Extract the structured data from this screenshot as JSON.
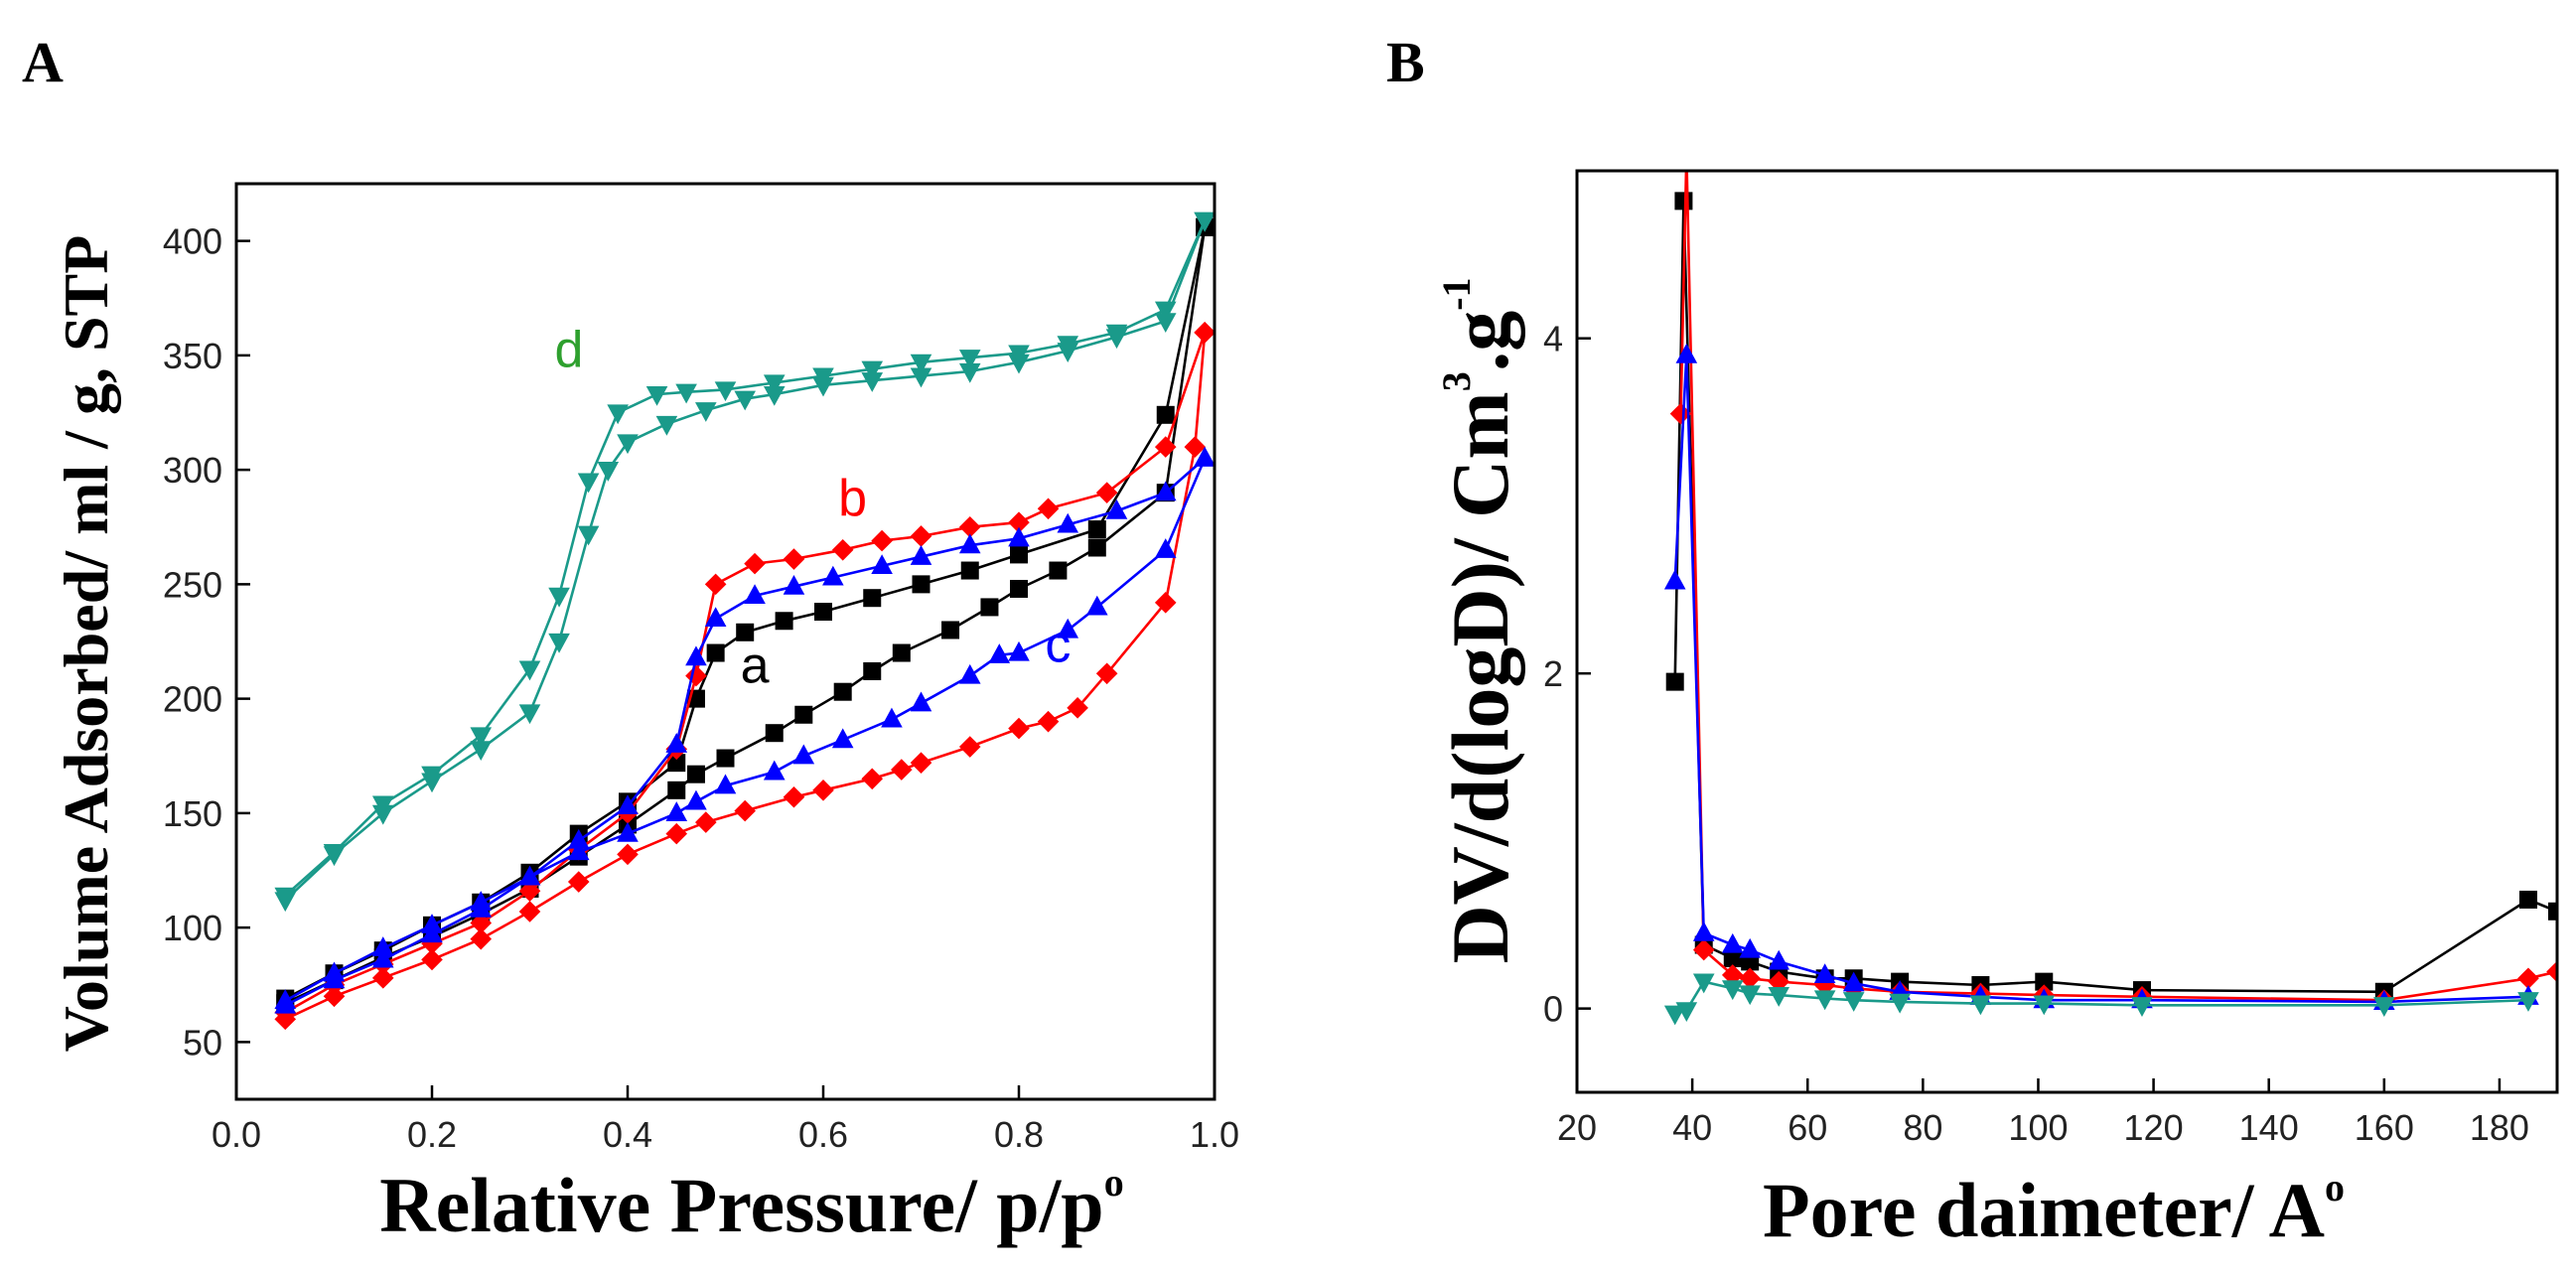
{
  "chart_data": [
    {
      "panel": "A",
      "type": "line",
      "xlabel_main": "Relative Pressure/ p/p",
      "xlabel_sup": "o",
      "ylabel": "Volume Adsorbed/ ml / g, STP",
      "xlim": [
        0.0,
        1.0
      ],
      "ylim": [
        25,
        425
      ],
      "xticks": [
        0.0,
        0.2,
        0.4,
        0.6,
        0.8,
        1.0
      ],
      "xtick_labels": [
        "0.0",
        "0.2",
        "0.4",
        "0.6",
        "0.8",
        "1.0"
      ],
      "yticks": [
        50,
        100,
        150,
        200,
        250,
        300,
        350,
        400
      ],
      "ytick_labels": [
        "50",
        "100",
        "150",
        "200",
        "250",
        "300",
        "350",
        "400"
      ],
      "series": [
        {
          "name": "a",
          "color": "#000000",
          "marker": "square",
          "label": "a",
          "label_at": [
            0.53,
            207
          ],
          "adsorption": [
            [
              0.05,
              67
            ],
            [
              0.1,
              77
            ],
            [
              0.15,
              87
            ],
            [
              0.2,
              96
            ],
            [
              0.25,
              106
            ],
            [
              0.3,
              117
            ],
            [
              0.35,
              131
            ],
            [
              0.4,
              145
            ],
            [
              0.45,
              160
            ],
            [
              0.47,
              167
            ],
            [
              0.5,
              174
            ],
            [
              0.55,
              185
            ],
            [
              0.58,
              193
            ],
            [
              0.62,
              203
            ],
            [
              0.65,
              212
            ],
            [
              0.68,
              220
            ],
            [
              0.73,
              230
            ],
            [
              0.77,
              240
            ],
            [
              0.8,
              248
            ],
            [
              0.84,
              256
            ],
            [
              0.88,
              266
            ],
            [
              0.95,
              290
            ],
            [
              0.99,
              406
            ]
          ],
          "desorption": [
            [
              0.99,
              406
            ],
            [
              0.95,
              324
            ],
            [
              0.88,
              274
            ],
            [
              0.8,
              263
            ],
            [
              0.75,
              256
            ],
            [
              0.7,
              250
            ],
            [
              0.65,
              244
            ],
            [
              0.6,
              238
            ],
            [
              0.56,
              234
            ],
            [
              0.52,
              229
            ],
            [
              0.49,
              220
            ],
            [
              0.47,
              200
            ],
            [
              0.45,
              172
            ],
            [
              0.4,
              155
            ],
            [
              0.35,
              141
            ],
            [
              0.3,
              124
            ],
            [
              0.25,
              111
            ],
            [
              0.2,
              101
            ],
            [
              0.15,
              90
            ],
            [
              0.1,
              80
            ],
            [
              0.05,
              69
            ]
          ]
        },
        {
          "name": "b",
          "color": "#ff0000",
          "marker": "diamond",
          "label": "b",
          "label_at": [
            0.63,
            280
          ],
          "adsorption": [
            [
              0.05,
              60
            ],
            [
              0.1,
              70
            ],
            [
              0.15,
              78
            ],
            [
              0.2,
              86
            ],
            [
              0.25,
              95
            ],
            [
              0.3,
              107
            ],
            [
              0.35,
              120
            ],
            [
              0.4,
              132
            ],
            [
              0.45,
              141
            ],
            [
              0.48,
              146
            ],
            [
              0.52,
              151
            ],
            [
              0.57,
              157
            ],
            [
              0.6,
              160
            ],
            [
              0.65,
              165
            ],
            [
              0.68,
              169
            ],
            [
              0.7,
              172
            ],
            [
              0.75,
              179
            ],
            [
              0.8,
              187
            ],
            [
              0.83,
              190
            ],
            [
              0.86,
              196
            ],
            [
              0.89,
              211
            ],
            [
              0.95,
              242
            ],
            [
              0.98,
              310
            ],
            [
              0.99,
              360
            ]
          ],
          "desorption": [
            [
              0.99,
              360
            ],
            [
              0.95,
              310
            ],
            [
              0.89,
              290
            ],
            [
              0.83,
              283
            ],
            [
              0.8,
              277
            ],
            [
              0.75,
              275
            ],
            [
              0.7,
              271
            ],
            [
              0.66,
              269
            ],
            [
              0.62,
              265
            ],
            [
              0.57,
              261
            ],
            [
              0.53,
              259
            ],
            [
              0.49,
              250
            ],
            [
              0.47,
              210
            ],
            [
              0.45,
              178
            ],
            [
              0.4,
              150
            ],
            [
              0.35,
              134
            ],
            [
              0.3,
              116
            ],
            [
              0.25,
              102
            ],
            [
              0.2,
              93
            ],
            [
              0.15,
              84
            ],
            [
              0.1,
              75
            ],
            [
              0.05,
              63
            ]
          ]
        },
        {
          "name": "c",
          "color": "#0000ff",
          "marker": "triangle-up",
          "label": "c",
          "label_at": [
            0.84,
            216
          ],
          "adsorption": [
            [
              0.05,
              68
            ],
            [
              0.1,
              80
            ],
            [
              0.15,
              91
            ],
            [
              0.2,
              101
            ],
            [
              0.25,
              111
            ],
            [
              0.3,
              122
            ],
            [
              0.35,
              133
            ],
            [
              0.4,
              141
            ],
            [
              0.45,
              150
            ],
            [
              0.47,
              155
            ],
            [
              0.5,
              162
            ],
            [
              0.55,
              168
            ],
            [
              0.58,
              175
            ],
            [
              0.62,
              182
            ],
            [
              0.67,
              191
            ],
            [
              0.7,
              198
            ],
            [
              0.75,
              210
            ],
            [
              0.78,
              219
            ],
            [
              0.8,
              220
            ],
            [
              0.85,
              230
            ],
            [
              0.88,
              240
            ],
            [
              0.95,
              265
            ],
            [
              0.99,
              305
            ]
          ],
          "desorption": [
            [
              0.99,
              305
            ],
            [
              0.95,
              290
            ],
            [
              0.9,
              282
            ],
            [
              0.85,
              276
            ],
            [
              0.8,
              270
            ],
            [
              0.75,
              267
            ],
            [
              0.7,
              262
            ],
            [
              0.66,
              258
            ],
            [
              0.61,
              253
            ],
            [
              0.57,
              249
            ],
            [
              0.53,
              245
            ],
            [
              0.49,
              235
            ],
            [
              0.47,
              218
            ],
            [
              0.45,
              180
            ],
            [
              0.4,
              153
            ],
            [
              0.35,
              138
            ],
            [
              0.3,
              122
            ],
            [
              0.25,
              108
            ],
            [
              0.2,
              97
            ],
            [
              0.15,
              86
            ],
            [
              0.1,
              77
            ],
            [
              0.05,
              66
            ]
          ]
        },
        {
          "name": "d",
          "color": "#1a9a8a",
          "marker": "triangle-down",
          "label": "d",
          "label_at": [
            0.34,
            345
          ],
          "label_color": "#2ea02e",
          "adsorption": [
            [
              0.05,
              112
            ],
            [
              0.1,
              132
            ],
            [
              0.15,
              150
            ],
            [
              0.2,
              164
            ],
            [
              0.25,
              178
            ],
            [
              0.3,
              194
            ],
            [
              0.33,
              225
            ],
            [
              0.36,
              272
            ],
            [
              0.38,
              300
            ],
            [
              0.4,
              312
            ],
            [
              0.44,
              320
            ],
            [
              0.48,
              326
            ],
            [
              0.52,
              331
            ],
            [
              0.55,
              333
            ],
            [
              0.6,
              337
            ],
            [
              0.65,
              339
            ],
            [
              0.7,
              341
            ],
            [
              0.75,
              343
            ],
            [
              0.8,
              347
            ],
            [
              0.85,
              352
            ],
            [
              0.9,
              358
            ],
            [
              0.95,
              365
            ],
            [
              0.99,
              409
            ]
          ],
          "desorption": [
            [
              0.99,
              409
            ],
            [
              0.95,
              370
            ],
            [
              0.9,
              360
            ],
            [
              0.85,
              355
            ],
            [
              0.8,
              351
            ],
            [
              0.75,
              349
            ],
            [
              0.7,
              347
            ],
            [
              0.65,
              344
            ],
            [
              0.6,
              341
            ],
            [
              0.55,
              338
            ],
            [
              0.5,
              335
            ],
            [
              0.46,
              334
            ],
            [
              0.43,
              333
            ],
            [
              0.39,
              325
            ],
            [
              0.36,
              295
            ],
            [
              0.33,
              245
            ],
            [
              0.3,
              213
            ],
            [
              0.25,
              184
            ],
            [
              0.2,
              167
            ],
            [
              0.15,
              154
            ],
            [
              0.1,
              133
            ],
            [
              0.05,
              114
            ]
          ]
        }
      ]
    },
    {
      "panel": "B",
      "type": "line",
      "xlabel_main": "Pore daimeter/ A",
      "xlabel_sup": "o",
      "ylabel_main": "DV/d(logD)/ Cm",
      "ylabel_sup1": "3",
      "ylabel_mid": ".g",
      "ylabel_sup2": "-1",
      "xlim": [
        20,
        190
      ],
      "ylim": [
        -0.5,
        5.0
      ],
      "xticks": [
        20,
        40,
        60,
        80,
        100,
        120,
        140,
        160,
        180
      ],
      "xtick_labels": [
        "20",
        "40",
        "60",
        "80",
        "100",
        "120",
        "140",
        "160",
        "180"
      ],
      "yticks": [
        0,
        2,
        4
      ],
      "ytick_labels": [
        "0",
        "2",
        "4"
      ],
      "series": [
        {
          "name": "a",
          "color": "#000000",
          "marker": "square",
          "points": [
            [
              37,
              1.95
            ],
            [
              38.5,
              4.82
            ],
            [
              42,
              0.38
            ],
            [
              47,
              0.3
            ],
            [
              50,
              0.28
            ],
            [
              55,
              0.22
            ],
            [
              63,
              0.18
            ],
            [
              68,
              0.18
            ],
            [
              76,
              0.16
            ],
            [
              90,
              0.14
            ],
            [
              101,
              0.16
            ],
            [
              118,
              0.11
            ],
            [
              160,
              0.1
            ],
            [
              185,
              0.65
            ],
            [
              190,
              0.58
            ]
          ]
        },
        {
          "name": "b",
          "color": "#ff0000",
          "marker": "diamond",
          "points": [
            [
              38,
              3.55
            ],
            [
              39,
              5.1
            ],
            [
              42,
              0.35
            ],
            [
              47,
              0.2
            ],
            [
              50,
              0.18
            ],
            [
              55,
              0.16
            ],
            [
              63,
              0.14
            ],
            [
              68,
              0.12
            ],
            [
              76,
              0.1
            ],
            [
              90,
              0.09
            ],
            [
              101,
              0.08
            ],
            [
              118,
              0.07
            ],
            [
              160,
              0.05
            ],
            [
              185,
              0.18
            ],
            [
              190,
              0.22
            ]
          ]
        },
        {
          "name": "c",
          "color": "#0000ff",
          "marker": "triangle-up",
          "points": [
            [
              37,
              2.55
            ],
            [
              39,
              3.9
            ],
            [
              42,
              0.45
            ],
            [
              47,
              0.38
            ],
            [
              50,
              0.35
            ],
            [
              55,
              0.28
            ],
            [
              63,
              0.2
            ],
            [
              68,
              0.15
            ],
            [
              76,
              0.1
            ],
            [
              90,
              0.07
            ],
            [
              101,
              0.05
            ],
            [
              118,
              0.05
            ],
            [
              160,
              0.04
            ],
            [
              185,
              0.07
            ]
          ]
        },
        {
          "name": "d",
          "color": "#1a9a8a",
          "marker": "triangle-down",
          "points": [
            [
              37,
              -0.03
            ],
            [
              39,
              -0.01
            ],
            [
              42,
              0.16
            ],
            [
              47,
              0.12
            ],
            [
              50,
              0.09
            ],
            [
              55,
              0.08
            ],
            [
              63,
              0.06
            ],
            [
              68,
              0.05
            ],
            [
              76,
              0.04
            ],
            [
              90,
              0.03
            ],
            [
              101,
              0.03
            ],
            [
              118,
              0.02
            ],
            [
              160,
              0.02
            ],
            [
              185,
              0.05
            ]
          ]
        }
      ]
    }
  ]
}
